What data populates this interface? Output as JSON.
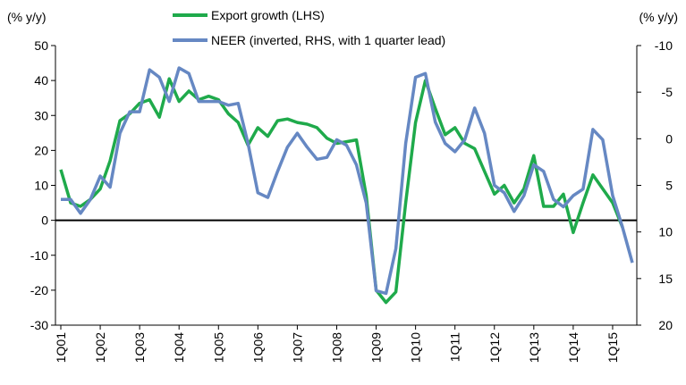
{
  "chart_data": {
    "type": "line",
    "ylabel": "(% y/y)",
    "y2label": "(% y/y)",
    "categories": [
      "1Q01",
      null,
      null,
      null,
      "1Q02",
      null,
      null,
      null,
      "1Q03",
      null,
      null,
      null,
      "1Q04",
      null,
      null,
      null,
      "1Q05",
      null,
      null,
      null,
      "1Q06",
      null,
      null,
      null,
      "1Q07",
      null,
      null,
      null,
      "1Q08",
      null,
      null,
      null,
      "1Q09",
      null,
      null,
      null,
      "1Q10",
      null,
      null,
      null,
      "1Q11",
      null,
      null,
      null,
      "1Q12",
      null,
      null,
      null,
      "1Q13",
      null,
      null,
      null,
      "1Q14",
      null,
      null,
      null,
      "1Q15",
      null,
      null
    ],
    "series": [
      {
        "name": "Export growth (LHS)",
        "color": "#1faa4b",
        "axis": "y",
        "values": [
          14.5,
          5,
          4,
          6,
          9,
          17,
          28.5,
          30.5,
          33.5,
          34.5,
          29.5,
          40.5,
          34,
          37,
          34.5,
          35.5,
          34.5,
          30.5,
          28,
          21.5,
          26.5,
          24,
          28.5,
          29,
          28,
          27.5,
          26.5,
          23.5,
          22,
          22.5,
          23,
          7,
          -20,
          -23.5,
          -20.5,
          5,
          28,
          40,
          32,
          24.5,
          26.5,
          22,
          20.5,
          14,
          7.5,
          10,
          5,
          9,
          18.5,
          4,
          4,
          7.5,
          -3.5,
          5,
          13,
          9,
          5,
          -2,
          null
        ]
      },
      {
        "name": "NEER (inverted, RHS, with 1 quarter lead)",
        "color": "#6688c3",
        "axis": "y2",
        "values": [
          6.5,
          6.5,
          8,
          6.5,
          4,
          5.2,
          -0.6,
          -2.9,
          -2.9,
          -7.4,
          -6.6,
          -4,
          -7.6,
          -7,
          -4,
          -4,
          -4,
          -3.6,
          -3.8,
          0.5,
          5.8,
          6.3,
          3.5,
          0.9,
          -0.6,
          0.9,
          2.2,
          2,
          0.1,
          0.7,
          2.8,
          6.9,
          16.3,
          16.6,
          11.8,
          0.5,
          -6.6,
          -7,
          -1.8,
          0.5,
          1.4,
          0.1,
          -3.3,
          -0.6,
          5,
          5.8,
          7.8,
          6.1,
          2.8,
          3.5,
          6.5,
          7.3,
          6.1,
          5.4,
          -1,
          0.1,
          6.1,
          9.5,
          13.3
        ]
      }
    ],
    "ylim": [
      -30,
      50
    ],
    "yticks": [
      -30,
      -20,
      -10,
      0,
      10,
      20,
      30,
      40,
      50
    ],
    "y2lim": [
      20,
      -10
    ],
    "y2ticks": [
      -10,
      -5,
      0,
      5,
      10,
      15,
      20
    ],
    "zero_line": true,
    "grid": false
  }
}
